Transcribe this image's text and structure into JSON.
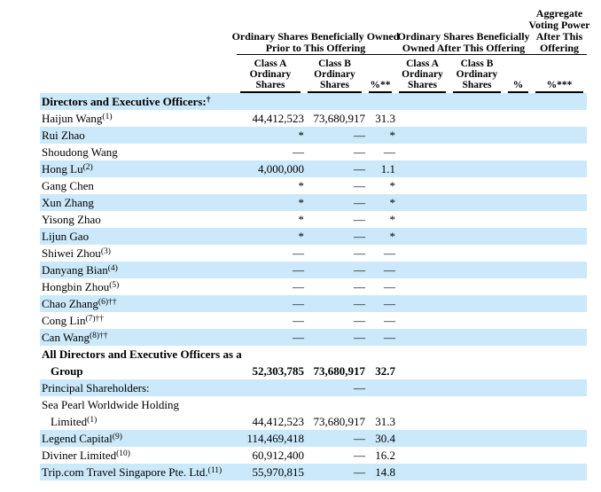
{
  "table": {
    "group_headers": [
      {
        "label": "Ordinary Shares Beneficially Owned\nPrior to This Offering"
      },
      {
        "label": "Ordinary Shares Beneficially\nOwned After This Offering"
      },
      {
        "label": "Aggregate\nVoting Power\nAfter This\nOffering"
      }
    ],
    "columns": [
      "Class A\nOrdinary\nShares",
      "Class B\nOrdinary\nShares",
      "%**",
      "Class A\nOrdinary\nShares",
      "Class B\nOrdinary\nShares",
      "%",
      "%***"
    ],
    "rows": [
      {
        "label": "Directors and Executive Officers:",
        "sup": "†",
        "bold": true,
        "shaded": true,
        "cells": [
          "",
          "",
          "",
          "",
          "",
          "",
          ""
        ]
      },
      {
        "label": "Haijun Wang",
        "sup": "(1)",
        "bold": false,
        "shaded": false,
        "cells": [
          "44,412,523",
          "73,680,917",
          "31.3",
          "",
          "",
          "",
          ""
        ]
      },
      {
        "label": "Rui Zhao",
        "sup": "",
        "bold": false,
        "shaded": true,
        "cells": [
          "*",
          "—",
          "*",
          "",
          "",
          "",
          ""
        ]
      },
      {
        "label": "Shoudong Wang",
        "sup": "",
        "bold": false,
        "shaded": false,
        "cells": [
          "—",
          "—",
          "—",
          "",
          "",
          "",
          ""
        ]
      },
      {
        "label": "Hong Lu",
        "sup": "(2)",
        "bold": false,
        "shaded": true,
        "cells": [
          "4,000,000",
          "—",
          "1.1",
          "",
          "",
          "",
          ""
        ]
      },
      {
        "label": "Gang Chen",
        "sup": "",
        "bold": false,
        "shaded": false,
        "cells": [
          "*",
          "—",
          "*",
          "",
          "",
          "",
          ""
        ]
      },
      {
        "label": "Xun Zhang",
        "sup": "",
        "bold": false,
        "shaded": true,
        "cells": [
          "*",
          "—",
          "*",
          "",
          "",
          "",
          ""
        ]
      },
      {
        "label": "Yisong Zhao",
        "sup": "",
        "bold": false,
        "shaded": false,
        "cells": [
          "*",
          "—",
          "*",
          "",
          "",
          "",
          ""
        ]
      },
      {
        "label": "Lijun Gao",
        "sup": "",
        "bold": false,
        "shaded": true,
        "cells": [
          "*",
          "—",
          "*",
          "",
          "",
          "",
          ""
        ]
      },
      {
        "label": "Shiwei Zhou",
        "sup": "(3)",
        "bold": false,
        "shaded": false,
        "cells": [
          "—",
          "—",
          "—",
          "",
          "",
          "",
          ""
        ]
      },
      {
        "label": "Danyang Bian",
        "sup": "(4)",
        "bold": false,
        "shaded": true,
        "cells": [
          "—",
          "—",
          "—",
          "",
          "",
          "",
          ""
        ]
      },
      {
        "label": "Hongbin Zhou",
        "sup": "(5)",
        "bold": false,
        "shaded": false,
        "cells": [
          "—",
          "—",
          "—",
          "",
          "",
          "",
          ""
        ]
      },
      {
        "label": "Chao Zhang",
        "sup": "(6)††",
        "bold": false,
        "shaded": true,
        "cells": [
          "—",
          "—",
          "—",
          "",
          "",
          "",
          ""
        ]
      },
      {
        "label": "Cong Lin",
        "sup": "(7)††",
        "bold": false,
        "shaded": false,
        "cells": [
          "—",
          "—",
          "—",
          "",
          "",
          "",
          ""
        ]
      },
      {
        "label": "Can Wang",
        "sup": "(8)††",
        "bold": false,
        "shaded": true,
        "cells": [
          "—",
          "—",
          "—",
          "",
          "",
          "",
          ""
        ]
      },
      {
        "label": "All Directors and Executive Officers as a",
        "label2": "Group",
        "sup": "",
        "sup2": "",
        "bold": true,
        "shaded": false,
        "cells": [
          "52,303,785",
          "73,680,917",
          "32.7",
          "",
          "",
          "",
          ""
        ]
      },
      {
        "label": "Principal Shareholders:",
        "sup": "",
        "bold": false,
        "shaded": true,
        "cells": [
          "",
          "—",
          "",
          "",
          "",
          "",
          ""
        ]
      },
      {
        "label": "Sea Pearl Worldwide Holding",
        "label2": "Limited",
        "sup": "",
        "sup2": "(1)",
        "bold": false,
        "shaded": false,
        "cells": [
          "44,412,523",
          "73,680,917",
          "31.3",
          "",
          "",
          "",
          ""
        ]
      },
      {
        "label": "Legend Capital",
        "sup": "(9)",
        "bold": false,
        "shaded": true,
        "cells": [
          "114,469,418",
          "—",
          "30.4",
          "",
          "",
          "",
          ""
        ]
      },
      {
        "label": "Diviner Limited",
        "sup": "(10)",
        "bold": false,
        "shaded": false,
        "cells": [
          "60,912,400",
          "—",
          "16.2",
          "",
          "",
          "",
          ""
        ]
      },
      {
        "label": "Trip.com Travel Singapore Pte. Ltd.",
        "sup": "(11)",
        "bold": false,
        "shaded": true,
        "cells": [
          "55,970,815",
          "—",
          "14.8",
          "",
          "",
          "",
          ""
        ]
      }
    ]
  }
}
